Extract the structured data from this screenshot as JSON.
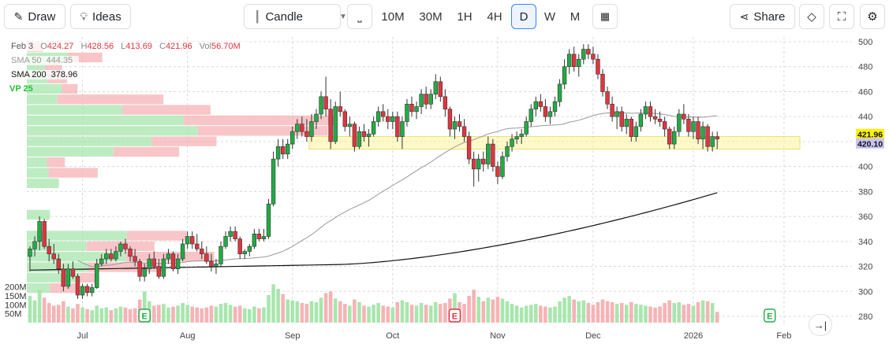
{
  "toolbar": {
    "draw_label": "Draw",
    "ideas_label": "Ideas",
    "chart_type": "Candle",
    "timeframes": [
      "10M",
      "30M",
      "1H",
      "4H",
      "D",
      "W",
      "M"
    ],
    "active_timeframe": "D",
    "share_label": "Share"
  },
  "legend": {
    "date": "Feb 3",
    "open_label": "O",
    "open": "424.27",
    "high_label": "H",
    "high": "428.56",
    "low_label": "L",
    "low": "413.69",
    "close_label": "C",
    "close": "421.96",
    "vol_label": "Vol",
    "vol": "56.70M",
    "sma50_label": "SMA 50",
    "sma50": "444.35",
    "sma200_label": "SMA 200",
    "sma200": "378.96",
    "vp_label": "VP 25"
  },
  "colors": {
    "up": "#22ab45",
    "down": "#e0353f",
    "up_light": "#a8e6ad",
    "down_light": "#f6b3b6",
    "sma50": "#9a9a9a",
    "sma200": "#111111",
    "value_area": "#fff59e",
    "active": "#3b82f6"
  },
  "chart_data": {
    "type": "candlestick",
    "y_ticks": [
      280,
      300,
      320,
      340,
      360,
      380,
      400,
      420,
      440,
      460,
      480,
      500
    ],
    "ylim": [
      272,
      506
    ],
    "x_labels": [
      "Jul",
      "Aug",
      "Sep",
      "Oct",
      "Nov",
      "Dec",
      "2026",
      "Feb"
    ],
    "x_label_index": [
      11,
      33,
      55,
      76,
      98,
      118,
      139,
      158
    ],
    "volume_ticks": [
      "50M",
      "100M",
      "150M",
      "200M"
    ],
    "volume_max": 265,
    "price_badges": [
      {
        "value": "421.96",
        "price": 421.96,
        "color": "#fff200",
        "text_color": "#111"
      },
      {
        "value": "420.10",
        "price": 420.1,
        "color": "#c9c3f5",
        "text_color": "#111"
      }
    ],
    "value_area": [
      414,
      424
    ],
    "value_area_start_index": 59,
    "earnings": [
      {
        "index": 24,
        "label": "E",
        "type": "up"
      },
      {
        "index": 89,
        "label": "E",
        "type": "down"
      },
      {
        "index": 155,
        "label": "E",
        "type": "up"
      }
    ],
    "bars": [
      {
        "o": 328,
        "h": 336,
        "l": 316,
        "c": 334,
        "v": 150
      },
      {
        "o": 334,
        "h": 344,
        "l": 328,
        "c": 340,
        "v": 125
      },
      {
        "o": 340,
        "h": 360,
        "l": 333,
        "c": 356,
        "v": 185
      },
      {
        "o": 356,
        "h": 358,
        "l": 334,
        "c": 336,
        "v": 140
      },
      {
        "o": 336,
        "h": 342,
        "l": 324,
        "c": 330,
        "v": 110
      },
      {
        "o": 330,
        "h": 338,
        "l": 322,
        "c": 326,
        "v": 95
      },
      {
        "o": 326,
        "h": 330,
        "l": 314,
        "c": 318,
        "v": 100
      },
      {
        "o": 318,
        "h": 322,
        "l": 300,
        "c": 304,
        "v": 120
      },
      {
        "o": 304,
        "h": 322,
        "l": 302,
        "c": 318,
        "v": 90
      },
      {
        "o": 318,
        "h": 324,
        "l": 310,
        "c": 312,
        "v": 80
      },
      {
        "o": 312,
        "h": 314,
        "l": 294,
        "c": 297,
        "v": 105
      },
      {
        "o": 297,
        "h": 306,
        "l": 294,
        "c": 304,
        "v": 85
      },
      {
        "o": 304,
        "h": 306,
        "l": 296,
        "c": 299,
        "v": 75
      },
      {
        "o": 299,
        "h": 306,
        "l": 296,
        "c": 303,
        "v": 70
      },
      {
        "o": 303,
        "h": 326,
        "l": 302,
        "c": 322,
        "v": 95
      },
      {
        "o": 322,
        "h": 330,
        "l": 320,
        "c": 326,
        "v": 80
      },
      {
        "o": 326,
        "h": 334,
        "l": 322,
        "c": 330,
        "v": 85
      },
      {
        "o": 330,
        "h": 334,
        "l": 324,
        "c": 326,
        "v": 70
      },
      {
        "o": 326,
        "h": 336,
        "l": 324,
        "c": 332,
        "v": 80
      },
      {
        "o": 332,
        "h": 340,
        "l": 328,
        "c": 338,
        "v": 90
      },
      {
        "o": 338,
        "h": 342,
        "l": 330,
        "c": 334,
        "v": 85
      },
      {
        "o": 334,
        "h": 336,
        "l": 324,
        "c": 328,
        "v": 75
      },
      {
        "o": 328,
        "h": 334,
        "l": 320,
        "c": 324,
        "v": 80
      },
      {
        "o": 324,
        "h": 326,
        "l": 308,
        "c": 312,
        "v": 130
      },
      {
        "o": 312,
        "h": 322,
        "l": 308,
        "c": 318,
        "v": 175
      },
      {
        "o": 318,
        "h": 330,
        "l": 314,
        "c": 326,
        "v": 120
      },
      {
        "o": 326,
        "h": 332,
        "l": 318,
        "c": 320,
        "v": 95
      },
      {
        "o": 320,
        "h": 326,
        "l": 310,
        "c": 312,
        "v": 100
      },
      {
        "o": 312,
        "h": 330,
        "l": 310,
        "c": 326,
        "v": 105
      },
      {
        "o": 326,
        "h": 334,
        "l": 322,
        "c": 330,
        "v": 85
      },
      {
        "o": 330,
        "h": 332,
        "l": 316,
        "c": 318,
        "v": 90
      },
      {
        "o": 318,
        "h": 330,
        "l": 314,
        "c": 326,
        "v": 95
      },
      {
        "o": 326,
        "h": 342,
        "l": 324,
        "c": 338,
        "v": 110
      },
      {
        "o": 338,
        "h": 348,
        "l": 334,
        "c": 344,
        "v": 100
      },
      {
        "o": 344,
        "h": 348,
        "l": 334,
        "c": 338,
        "v": 90
      },
      {
        "o": 338,
        "h": 346,
        "l": 332,
        "c": 334,
        "v": 85
      },
      {
        "o": 334,
        "h": 340,
        "l": 326,
        "c": 330,
        "v": 80
      },
      {
        "o": 330,
        "h": 336,
        "l": 322,
        "c": 324,
        "v": 85
      },
      {
        "o": 324,
        "h": 330,
        "l": 316,
        "c": 320,
        "v": 95
      },
      {
        "o": 320,
        "h": 326,
        "l": 314,
        "c": 322,
        "v": 90
      },
      {
        "o": 322,
        "h": 340,
        "l": 320,
        "c": 336,
        "v": 105
      },
      {
        "o": 336,
        "h": 348,
        "l": 334,
        "c": 344,
        "v": 110
      },
      {
        "o": 344,
        "h": 352,
        "l": 340,
        "c": 348,
        "v": 100
      },
      {
        "o": 348,
        "h": 352,
        "l": 340,
        "c": 342,
        "v": 90
      },
      {
        "o": 342,
        "h": 344,
        "l": 326,
        "c": 330,
        "v": 95
      },
      {
        "o": 330,
        "h": 334,
        "l": 326,
        "c": 332,
        "v": 80
      },
      {
        "o": 332,
        "h": 338,
        "l": 328,
        "c": 336,
        "v": 75
      },
      {
        "o": 336,
        "h": 350,
        "l": 334,
        "c": 346,
        "v": 90
      },
      {
        "o": 346,
        "h": 350,
        "l": 340,
        "c": 342,
        "v": 80
      },
      {
        "o": 342,
        "h": 350,
        "l": 340,
        "c": 344,
        "v": 85
      },
      {
        "o": 344,
        "h": 374,
        "l": 342,
        "c": 370,
        "v": 155
      },
      {
        "o": 370,
        "h": 412,
        "l": 368,
        "c": 406,
        "v": 215
      },
      {
        "o": 406,
        "h": 422,
        "l": 400,
        "c": 416,
        "v": 190
      },
      {
        "o": 416,
        "h": 422,
        "l": 406,
        "c": 410,
        "v": 160
      },
      {
        "o": 410,
        "h": 422,
        "l": 406,
        "c": 418,
        "v": 130
      },
      {
        "o": 418,
        "h": 432,
        "l": 414,
        "c": 428,
        "v": 125
      },
      {
        "o": 428,
        "h": 438,
        "l": 422,
        "c": 434,
        "v": 120
      },
      {
        "o": 434,
        "h": 440,
        "l": 424,
        "c": 428,
        "v": 110
      },
      {
        "o": 428,
        "h": 438,
        "l": 420,
        "c": 424,
        "v": 105
      },
      {
        "o": 424,
        "h": 442,
        "l": 420,
        "c": 436,
        "v": 120
      },
      {
        "o": 436,
        "h": 446,
        "l": 430,
        "c": 442,
        "v": 115
      },
      {
        "o": 442,
        "h": 460,
        "l": 438,
        "c": 456,
        "v": 140
      },
      {
        "o": 456,
        "h": 472,
        "l": 440,
        "c": 446,
        "v": 165
      },
      {
        "o": 446,
        "h": 454,
        "l": 414,
        "c": 420,
        "v": 175
      },
      {
        "o": 420,
        "h": 452,
        "l": 418,
        "c": 448,
        "v": 135
      },
      {
        "o": 448,
        "h": 460,
        "l": 440,
        "c": 444,
        "v": 120
      },
      {
        "o": 444,
        "h": 446,
        "l": 428,
        "c": 432,
        "v": 105
      },
      {
        "o": 432,
        "h": 440,
        "l": 424,
        "c": 434,
        "v": 95
      },
      {
        "o": 434,
        "h": 436,
        "l": 412,
        "c": 416,
        "v": 130
      },
      {
        "o": 416,
        "h": 432,
        "l": 414,
        "c": 428,
        "v": 115
      },
      {
        "o": 428,
        "h": 434,
        "l": 420,
        "c": 424,
        "v": 95
      },
      {
        "o": 424,
        "h": 430,
        "l": 416,
        "c": 426,
        "v": 90
      },
      {
        "o": 426,
        "h": 440,
        "l": 424,
        "c": 436,
        "v": 100
      },
      {
        "o": 436,
        "h": 448,
        "l": 432,
        "c": 444,
        "v": 110
      },
      {
        "o": 444,
        "h": 450,
        "l": 436,
        "c": 440,
        "v": 95
      },
      {
        "o": 440,
        "h": 446,
        "l": 430,
        "c": 436,
        "v": 90
      },
      {
        "o": 436,
        "h": 444,
        "l": 430,
        "c": 440,
        "v": 85
      },
      {
        "o": 440,
        "h": 444,
        "l": 420,
        "c": 424,
        "v": 115
      },
      {
        "o": 424,
        "h": 440,
        "l": 414,
        "c": 436,
        "v": 125
      },
      {
        "o": 436,
        "h": 454,
        "l": 432,
        "c": 450,
        "v": 115
      },
      {
        "o": 450,
        "h": 456,
        "l": 440,
        "c": 444,
        "v": 100
      },
      {
        "o": 444,
        "h": 452,
        "l": 438,
        "c": 448,
        "v": 95
      },
      {
        "o": 448,
        "h": 462,
        "l": 442,
        "c": 458,
        "v": 110
      },
      {
        "o": 458,
        "h": 464,
        "l": 446,
        "c": 450,
        "v": 100
      },
      {
        "o": 450,
        "h": 462,
        "l": 446,
        "c": 458,
        "v": 95
      },
      {
        "o": 458,
        "h": 474,
        "l": 454,
        "c": 468,
        "v": 115
      },
      {
        "o": 468,
        "h": 472,
        "l": 452,
        "c": 456,
        "v": 105
      },
      {
        "o": 456,
        "h": 462,
        "l": 440,
        "c": 446,
        "v": 110
      },
      {
        "o": 446,
        "h": 448,
        "l": 424,
        "c": 430,
        "v": 135
      },
      {
        "o": 430,
        "h": 440,
        "l": 422,
        "c": 436,
        "v": 165
      },
      {
        "o": 436,
        "h": 442,
        "l": 428,
        "c": 432,
        "v": 115
      },
      {
        "o": 432,
        "h": 438,
        "l": 420,
        "c": 424,
        "v": 105
      },
      {
        "o": 424,
        "h": 428,
        "l": 402,
        "c": 406,
        "v": 150
      },
      {
        "o": 406,
        "h": 412,
        "l": 384,
        "c": 398,
        "v": 185
      },
      {
        "o": 398,
        "h": 410,
        "l": 388,
        "c": 406,
        "v": 145
      },
      {
        "o": 406,
        "h": 412,
        "l": 396,
        "c": 402,
        "v": 120
      },
      {
        "o": 402,
        "h": 424,
        "l": 398,
        "c": 418,
        "v": 140
      },
      {
        "o": 418,
        "h": 422,
        "l": 396,
        "c": 400,
        "v": 130
      },
      {
        "o": 400,
        "h": 404,
        "l": 386,
        "c": 392,
        "v": 145
      },
      {
        "o": 392,
        "h": 412,
        "l": 390,
        "c": 408,
        "v": 135
      },
      {
        "o": 408,
        "h": 420,
        "l": 404,
        "c": 416,
        "v": 120
      },
      {
        "o": 416,
        "h": 426,
        "l": 412,
        "c": 422,
        "v": 105
      },
      {
        "o": 422,
        "h": 428,
        "l": 418,
        "c": 424,
        "v": 95
      },
      {
        "o": 424,
        "h": 430,
        "l": 418,
        "c": 426,
        "v": 85
      },
      {
        "o": 426,
        "h": 440,
        "l": 424,
        "c": 436,
        "v": 95
      },
      {
        "o": 436,
        "h": 450,
        "l": 432,
        "c": 446,
        "v": 100
      },
      {
        "o": 446,
        "h": 456,
        "l": 440,
        "c": 452,
        "v": 105
      },
      {
        "o": 452,
        "h": 458,
        "l": 444,
        "c": 448,
        "v": 95
      },
      {
        "o": 448,
        "h": 454,
        "l": 436,
        "c": 440,
        "v": 90
      },
      {
        "o": 440,
        "h": 448,
        "l": 434,
        "c": 444,
        "v": 85
      },
      {
        "o": 444,
        "h": 456,
        "l": 440,
        "c": 452,
        "v": 90
      },
      {
        "o": 452,
        "h": 470,
        "l": 448,
        "c": 466,
        "v": 120
      },
      {
        "o": 466,
        "h": 486,
        "l": 462,
        "c": 480,
        "v": 140
      },
      {
        "o": 480,
        "h": 494,
        "l": 474,
        "c": 490,
        "v": 150
      },
      {
        "o": 490,
        "h": 496,
        "l": 476,
        "c": 480,
        "v": 130
      },
      {
        "o": 480,
        "h": 490,
        "l": 472,
        "c": 486,
        "v": 120
      },
      {
        "o": 486,
        "h": 498,
        "l": 482,
        "c": 494,
        "v": 125
      },
      {
        "o": 494,
        "h": 498,
        "l": 486,
        "c": 490,
        "v": 110
      },
      {
        "o": 490,
        "h": 496,
        "l": 482,
        "c": 486,
        "v": 100
      },
      {
        "o": 486,
        "h": 490,
        "l": 470,
        "c": 474,
        "v": 115
      },
      {
        "o": 474,
        "h": 478,
        "l": 456,
        "c": 460,
        "v": 130
      },
      {
        "o": 460,
        "h": 464,
        "l": 446,
        "c": 450,
        "v": 120
      },
      {
        "o": 450,
        "h": 456,
        "l": 436,
        "c": 440,
        "v": 115
      },
      {
        "o": 440,
        "h": 448,
        "l": 430,
        "c": 444,
        "v": 105
      },
      {
        "o": 444,
        "h": 448,
        "l": 428,
        "c": 432,
        "v": 110
      },
      {
        "o": 432,
        "h": 442,
        "l": 426,
        "c": 438,
        "v": 100
      },
      {
        "o": 438,
        "h": 440,
        "l": 420,
        "c": 424,
        "v": 115
      },
      {
        "o": 424,
        "h": 436,
        "l": 420,
        "c": 432,
        "v": 105
      },
      {
        "o": 432,
        "h": 446,
        "l": 428,
        "c": 442,
        "v": 100
      },
      {
        "o": 442,
        "h": 452,
        "l": 438,
        "c": 448,
        "v": 95
      },
      {
        "o": 448,
        "h": 452,
        "l": 436,
        "c": 440,
        "v": 90
      },
      {
        "o": 440,
        "h": 446,
        "l": 434,
        "c": 438,
        "v": 85
      },
      {
        "o": 438,
        "h": 444,
        "l": 432,
        "c": 436,
        "v": 90
      },
      {
        "o": 436,
        "h": 440,
        "l": 424,
        "c": 430,
        "v": 110
      },
      {
        "o": 430,
        "h": 432,
        "l": 414,
        "c": 418,
        "v": 125
      },
      {
        "o": 418,
        "h": 432,
        "l": 414,
        "c": 428,
        "v": 110
      },
      {
        "o": 428,
        "h": 446,
        "l": 424,
        "c": 442,
        "v": 115
      },
      {
        "o": 442,
        "h": 450,
        "l": 434,
        "c": 438,
        "v": 100
      },
      {
        "o": 438,
        "h": 442,
        "l": 424,
        "c": 428,
        "v": 105
      },
      {
        "o": 428,
        "h": 440,
        "l": 422,
        "c": 436,
        "v": 95
      },
      {
        "o": 436,
        "h": 440,
        "l": 418,
        "c": 422,
        "v": 115
      },
      {
        "o": 422,
        "h": 436,
        "l": 414,
        "c": 432,
        "v": 125
      },
      {
        "o": 432,
        "h": 434,
        "l": 412,
        "c": 416,
        "v": 120
      },
      {
        "o": 416,
        "h": 428,
        "l": 412,
        "c": 424,
        "v": 110
      },
      {
        "o": 424,
        "h": 428,
        "l": 414,
        "c": 422,
        "v": 60
      }
    ]
  }
}
